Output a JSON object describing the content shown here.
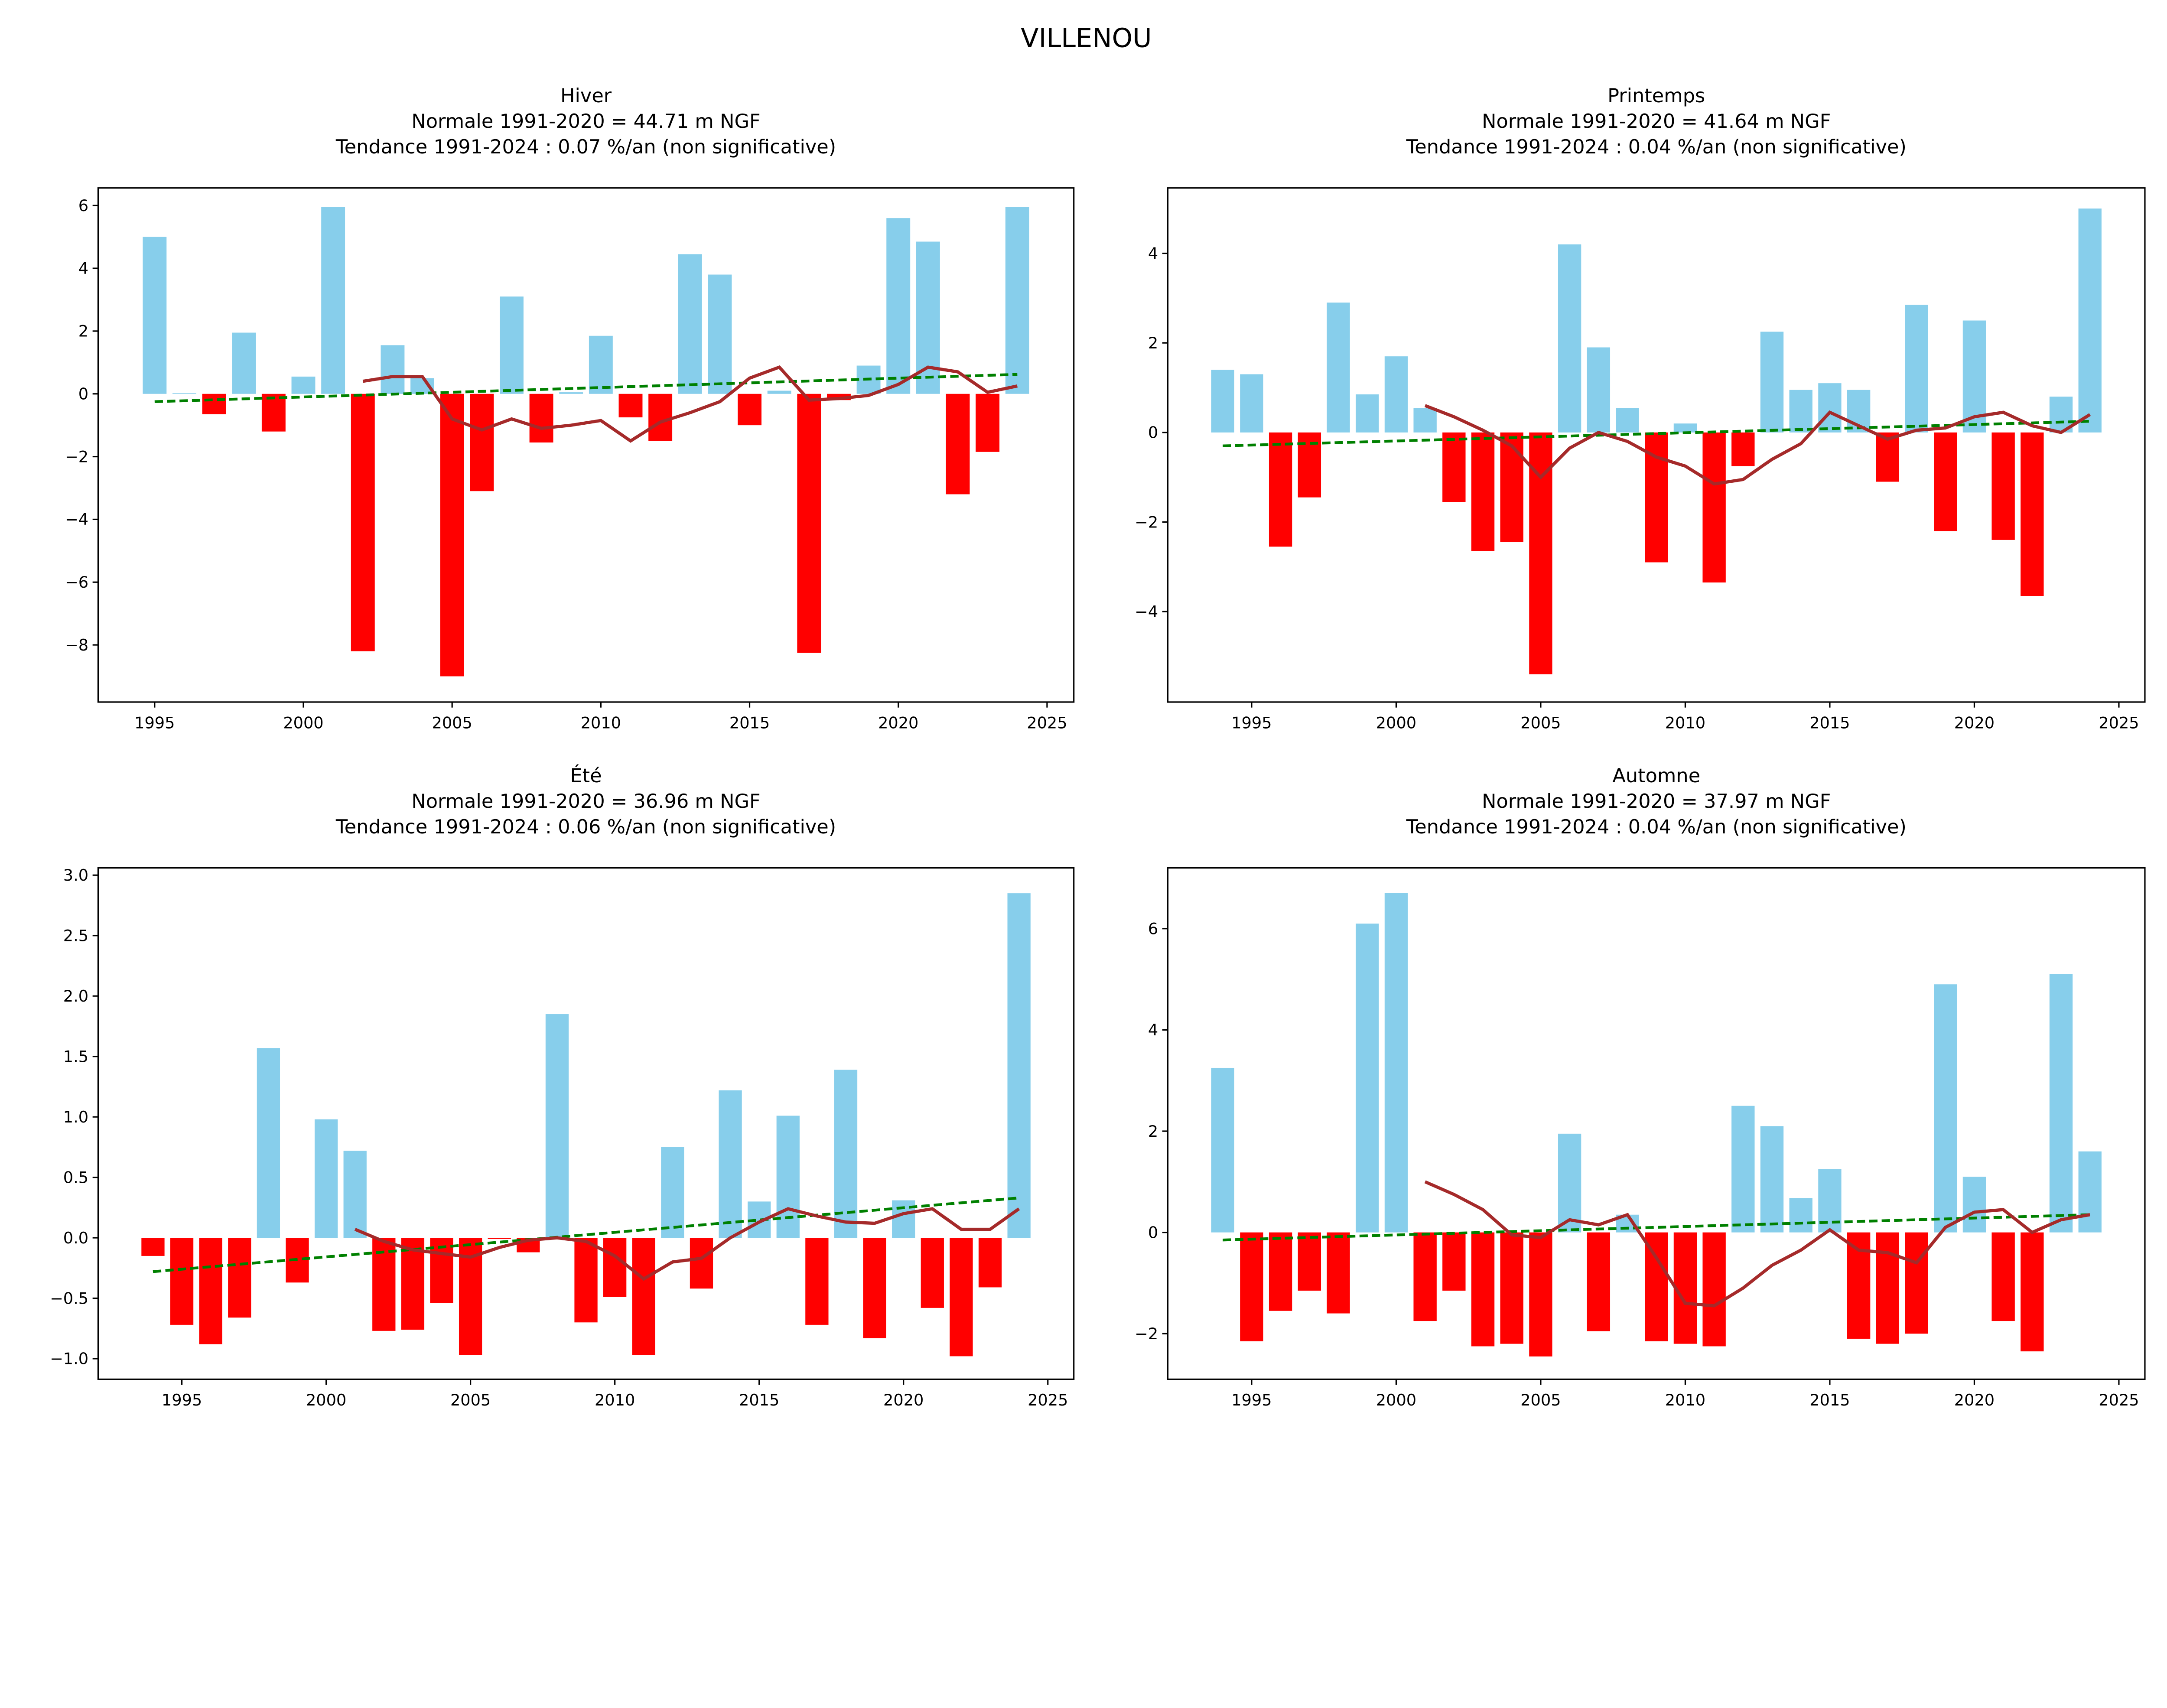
{
  "figure": {
    "title": "VILLENOU"
  },
  "chart_data": [
    {
      "type": "bar",
      "title_lines": [
        "Hiver",
        "Normale 1991-2020 = 44.71 m NGF",
        "Tendance 1991-2024 : 0.07 %/an (non significative)"
      ],
      "xlim": [
        1993.1,
        2025.9
      ],
      "ylim": [
        -9.82,
        6.56
      ],
      "xticks": [
        1995,
        2000,
        2005,
        2010,
        2015,
        2020,
        2025
      ],
      "yticks": [
        6,
        4,
        2,
        0,
        -2,
        -4,
        -6,
        -8
      ],
      "ytick_labels": [
        "6",
        "4",
        "2",
        "0",
        "−2",
        "−4",
        "−6",
        "−8"
      ],
      "x": [
        1995,
        1996,
        1997,
        1998,
        1999,
        2000,
        2001,
        2002,
        2003,
        2004,
        2005,
        2006,
        2007,
        2008,
        2009,
        2010,
        2011,
        2012,
        2013,
        2014,
        2015,
        2016,
        2017,
        2018,
        2019,
        2020,
        2021,
        2022,
        2023,
        2024
      ],
      "values": [
        5.0,
        0.02,
        -0.65,
        1.95,
        -1.2,
        0.55,
        5.95,
        -8.2,
        1.55,
        0.5,
        -9.0,
        -3.1,
        3.1,
        -1.55,
        0.05,
        1.85,
        -0.75,
        -1.5,
        4.45,
        3.8,
        -1.0,
        0.1,
        -8.25,
        -0.2,
        0.9,
        5.6,
        4.85,
        -3.2,
        -1.85,
        5.95
      ],
      "moving_average": {
        "x": [
          2002,
          2003,
          2004,
          2005,
          2006,
          2007,
          2008,
          2009,
          2010,
          2011,
          2012,
          2013,
          2014,
          2015,
          2016,
          2017,
          2018,
          2019,
          2020,
          2021,
          2022,
          2023,
          2024
        ],
        "y": [
          0.4,
          0.55,
          0.55,
          -0.8,
          -1.15,
          -0.8,
          -1.1,
          -1.0,
          -0.85,
          -1.5,
          -0.9,
          -0.6,
          -0.25,
          0.5,
          0.85,
          -0.2,
          -0.15,
          -0.05,
          0.3,
          0.85,
          0.7,
          0.05,
          0.25
        ]
      },
      "trend": {
        "x": [
          1995,
          2024
        ],
        "y": [
          -0.25,
          0.62
        ]
      }
    },
    {
      "type": "bar",
      "title_lines": [
        "Printemps",
        "Normale 1991-2020 = 41.64 m NGF",
        "Tendance 1991-2024 : 0.04 %/an (non significative)"
      ],
      "xlim": [
        1992.1,
        2025.9
      ],
      "ylim": [
        -6.02,
        5.46
      ],
      "xticks": [
        1995,
        2000,
        2005,
        2010,
        2015,
        2020,
        2025
      ],
      "yticks": [
        4,
        2,
        0,
        -2,
        -4
      ],
      "ytick_labels": [
        "4",
        "2",
        "0",
        "−2",
        "−4"
      ],
      "x": [
        1994,
        1995,
        1996,
        1997,
        1998,
        1999,
        2000,
        2001,
        2002,
        2003,
        2004,
        2005,
        2006,
        2007,
        2008,
        2009,
        2010,
        2011,
        2012,
        2013,
        2014,
        2015,
        2016,
        2017,
        2018,
        2019,
        2020,
        2021,
        2022,
        2023,
        2024
      ],
      "values": [
        1.4,
        1.3,
        -2.55,
        -1.45,
        2.9,
        0.85,
        1.7,
        0.55,
        -1.55,
        -2.65,
        -2.45,
        -5.4,
        4.2,
        1.9,
        0.55,
        -2.9,
        0.2,
        -3.35,
        -0.75,
        2.25,
        0.95,
        1.1,
        0.95,
        -1.1,
        2.85,
        -2.2,
        2.5,
        -2.4,
        -3.65,
        0.8,
        5.0
      ],
      "moving_average": {
        "x": [
          2001,
          2002,
          2003,
          2004,
          2005,
          2006,
          2007,
          2008,
          2009,
          2010,
          2011,
          2012,
          2013,
          2014,
          2015,
          2016,
          2017,
          2018,
          2019,
          2020,
          2021,
          2022,
          2023,
          2024
        ],
        "y": [
          0.6,
          0.35,
          0.05,
          -0.3,
          -1.0,
          -0.35,
          0.0,
          -0.2,
          -0.55,
          -0.75,
          -1.15,
          -1.05,
          -0.6,
          -0.25,
          0.45,
          0.15,
          -0.15,
          0.05,
          0.1,
          0.35,
          0.45,
          0.15,
          0.0,
          0.4
        ]
      },
      "trend": {
        "x": [
          1994,
          2024
        ],
        "y": [
          -0.3,
          0.25
        ]
      }
    },
    {
      "type": "bar",
      "title_lines": [
        "Été",
        "Normale 1991-2020 = 36.96 m NGF",
        "Tendance 1991-2024 : 0.06 %/an (non significative)"
      ],
      "xlim": [
        1992.1,
        2025.9
      ],
      "ylim": [
        -1.17,
        3.06
      ],
      "xticks": [
        1995,
        2000,
        2005,
        2010,
        2015,
        2020,
        2025
      ],
      "yticks": [
        3.0,
        2.5,
        2.0,
        1.5,
        1.0,
        0.5,
        0.0,
        -0.5,
        -1.0
      ],
      "ytick_labels": [
        "3.0",
        "2.5",
        "2.0",
        "1.5",
        "1.0",
        "0.5",
        "0.0",
        "−0.5",
        "−1.0"
      ],
      "x": [
        1994,
        1995,
        1996,
        1997,
        1998,
        1999,
        2000,
        2001,
        2002,
        2003,
        2004,
        2005,
        2006,
        2007,
        2008,
        2009,
        2010,
        2011,
        2012,
        2013,
        2014,
        2015,
        2016,
        2017,
        2018,
        2019,
        2020,
        2021,
        2022,
        2023,
        2024
      ],
      "values": [
        -0.15,
        -0.72,
        -0.88,
        -0.66,
        1.57,
        -0.37,
        0.98,
        0.72,
        -0.77,
        -0.76,
        -0.54,
        -0.97,
        -0.01,
        -0.12,
        1.85,
        -0.7,
        -0.49,
        -0.97,
        0.75,
        -0.42,
        1.22,
        0.3,
        1.01,
        -0.72,
        1.39,
        -0.83,
        0.31,
        -0.58,
        -0.98,
        -0.41,
        2.85
      ],
      "moving_average": {
        "x": [
          2001,
          2002,
          2003,
          2004,
          2005,
          2006,
          2007,
          2008,
          2009,
          2010,
          2011,
          2012,
          2013,
          2014,
          2015,
          2016,
          2017,
          2018,
          2019,
          2020,
          2021,
          2022,
          2023,
          2024
        ],
        "y": [
          0.07,
          -0.03,
          -0.1,
          -0.13,
          -0.16,
          -0.08,
          -0.02,
          0.0,
          -0.03,
          -0.15,
          -0.34,
          -0.2,
          -0.17,
          0.0,
          0.13,
          0.24,
          0.18,
          0.13,
          0.12,
          0.2,
          0.24,
          0.07,
          0.07,
          0.24
        ]
      },
      "trend": {
        "x": [
          1994,
          2024
        ],
        "y": [
          -0.28,
          0.33
        ]
      }
    },
    {
      "type": "bar",
      "title_lines": [
        "Automne",
        "Normale 1991-2020 = 37.97 m NGF",
        "Tendance 1991-2024 : 0.04 %/an (non significative)"
      ],
      "xlim": [
        1992.1,
        2025.9
      ],
      "ylim": [
        -2.9,
        7.2
      ],
      "xticks": [
        1995,
        2000,
        2005,
        2010,
        2015,
        2020,
        2025
      ],
      "yticks": [
        6,
        4,
        2,
        0,
        -2
      ],
      "ytick_labels": [
        "6",
        "4",
        "2",
        "0",
        "−2"
      ],
      "x": [
        1994,
        1995,
        1996,
        1997,
        1998,
        1999,
        2000,
        2001,
        2002,
        2003,
        2004,
        2005,
        2006,
        2007,
        2008,
        2009,
        2010,
        2011,
        2012,
        2013,
        2014,
        2015,
        2016,
        2017,
        2018,
        2019,
        2020,
        2021,
        2022,
        2023,
        2024
      ],
      "values": [
        3.25,
        -2.15,
        -1.55,
        -1.15,
        -1.6,
        6.1,
        6.7,
        -1.75,
        -1.15,
        -2.25,
        -2.2,
        -2.45,
        1.95,
        -1.95,
        0.35,
        -2.15,
        -2.2,
        -2.25,
        2.5,
        2.1,
        0.68,
        1.25,
        -2.1,
        -2.2,
        -2.0,
        4.9,
        1.1,
        -1.75,
        -2.35,
        5.1,
        1.6
      ],
      "moving_average": {
        "x": [
          2001,
          2002,
          2003,
          2004,
          2005,
          2006,
          2007,
          2008,
          2009,
          2010,
          2011,
          2012,
          2013,
          2014,
          2015,
          2016,
          2017,
          2018,
          2019,
          2020,
          2021,
          2022,
          2023,
          2024
        ],
        "y": [
          1.0,
          0.75,
          0.45,
          -0.05,
          -0.1,
          0.25,
          0.15,
          0.35,
          -0.5,
          -1.4,
          -1.45,
          -1.1,
          -0.65,
          -0.35,
          0.05,
          -0.35,
          -0.4,
          -0.6,
          0.1,
          0.4,
          0.45,
          0.0,
          0.25,
          0.35
        ]
      },
      "trend": {
        "x": [
          1994,
          2024
        ],
        "y": [
          -0.15,
          0.35
        ]
      }
    }
  ],
  "colors": {
    "positive": "#87ceeb",
    "negative": "#ff0000",
    "moving_average": "#a52a2a",
    "trend": "#008000"
  }
}
